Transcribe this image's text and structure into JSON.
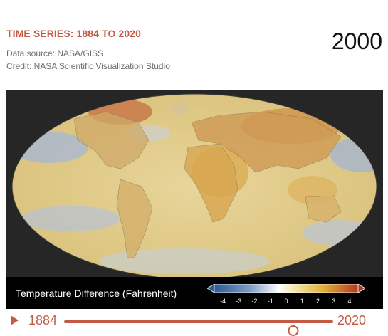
{
  "header": {
    "title": "TIME SERIES: 1884 TO 2020",
    "current_year": "2000",
    "data_source": "Data source: NASA/GISS",
    "credit": "Credit: NASA Scientific Visualization Studio"
  },
  "legend": {
    "title": "Temperature Difference (Fahrenheit)",
    "ticks": [
      "-4",
      "-3",
      "-2",
      "-1",
      "0",
      "1",
      "2",
      "3",
      "4"
    ]
  },
  "timeline": {
    "start_label": "1884",
    "end_label": "2020",
    "start_year": 1884,
    "end_year": 2020,
    "current_year": 2000
  },
  "colors": {
    "accent": "#c45a44",
    "cold": "#2f5c91",
    "neutral": "#ffffff",
    "warm": "#e2b23a",
    "hot": "#b23a1f"
  },
  "icons": {
    "play": "play-icon",
    "scale_left_arrow": "arrow-left-icon",
    "scale_right_arrow": "arrow-right-icon"
  }
}
